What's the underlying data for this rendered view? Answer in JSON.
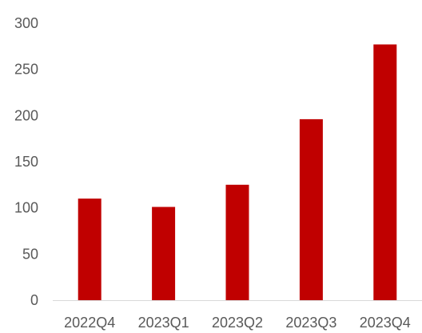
{
  "chart_data": {
    "type": "bar",
    "categories": [
      "2022Q4",
      "2023Q1",
      "2023Q2",
      "2023Q3",
      "2023Q4"
    ],
    "values": [
      110,
      101,
      125,
      196,
      277
    ],
    "yticks": [
      "0",
      "50",
      "100",
      "150",
      "200",
      "250",
      "300"
    ],
    "ylim": [
      0,
      300
    ],
    "title": "",
    "xlabel": "",
    "ylabel": "",
    "grid": false,
    "legend": "none",
    "bar_color": "#C00000",
    "axis_color": "#D9D9D9",
    "label_color": "#595959"
  }
}
